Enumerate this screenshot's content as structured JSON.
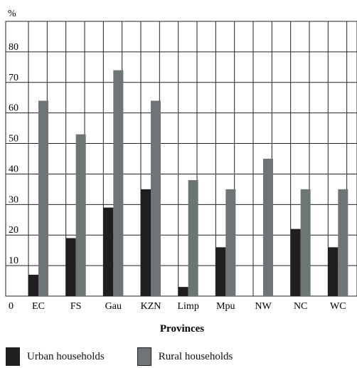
{
  "chart_data": {
    "type": "bar",
    "unit_label": "%",
    "xlabel": "Provinces",
    "ylabel": "",
    "categories": [
      "EC",
      "FS",
      "Gau",
      "KZN",
      "Limp",
      "Mpu",
      "NW",
      "NC",
      "WC"
    ],
    "series": [
      {
        "name": "Urban households",
        "values": [
          7,
          19,
          29,
          35,
          3,
          16,
          0,
          22,
          16
        ]
      },
      {
        "name": "Rural households",
        "values": [
          64,
          53,
          74,
          64,
          38,
          35,
          45,
          35,
          35
        ]
      }
    ],
    "ylim": [
      0,
      90
    ],
    "yticks": [
      10,
      20,
      30,
      40,
      50,
      60,
      70,
      80
    ],
    "zero_label": "0",
    "grid": true,
    "legend_position": "bottom-left"
  },
  "colors": {
    "urban": "#1f1f1f",
    "rural": "#6e7576",
    "grid": "#222222",
    "background": "#ffffff"
  }
}
